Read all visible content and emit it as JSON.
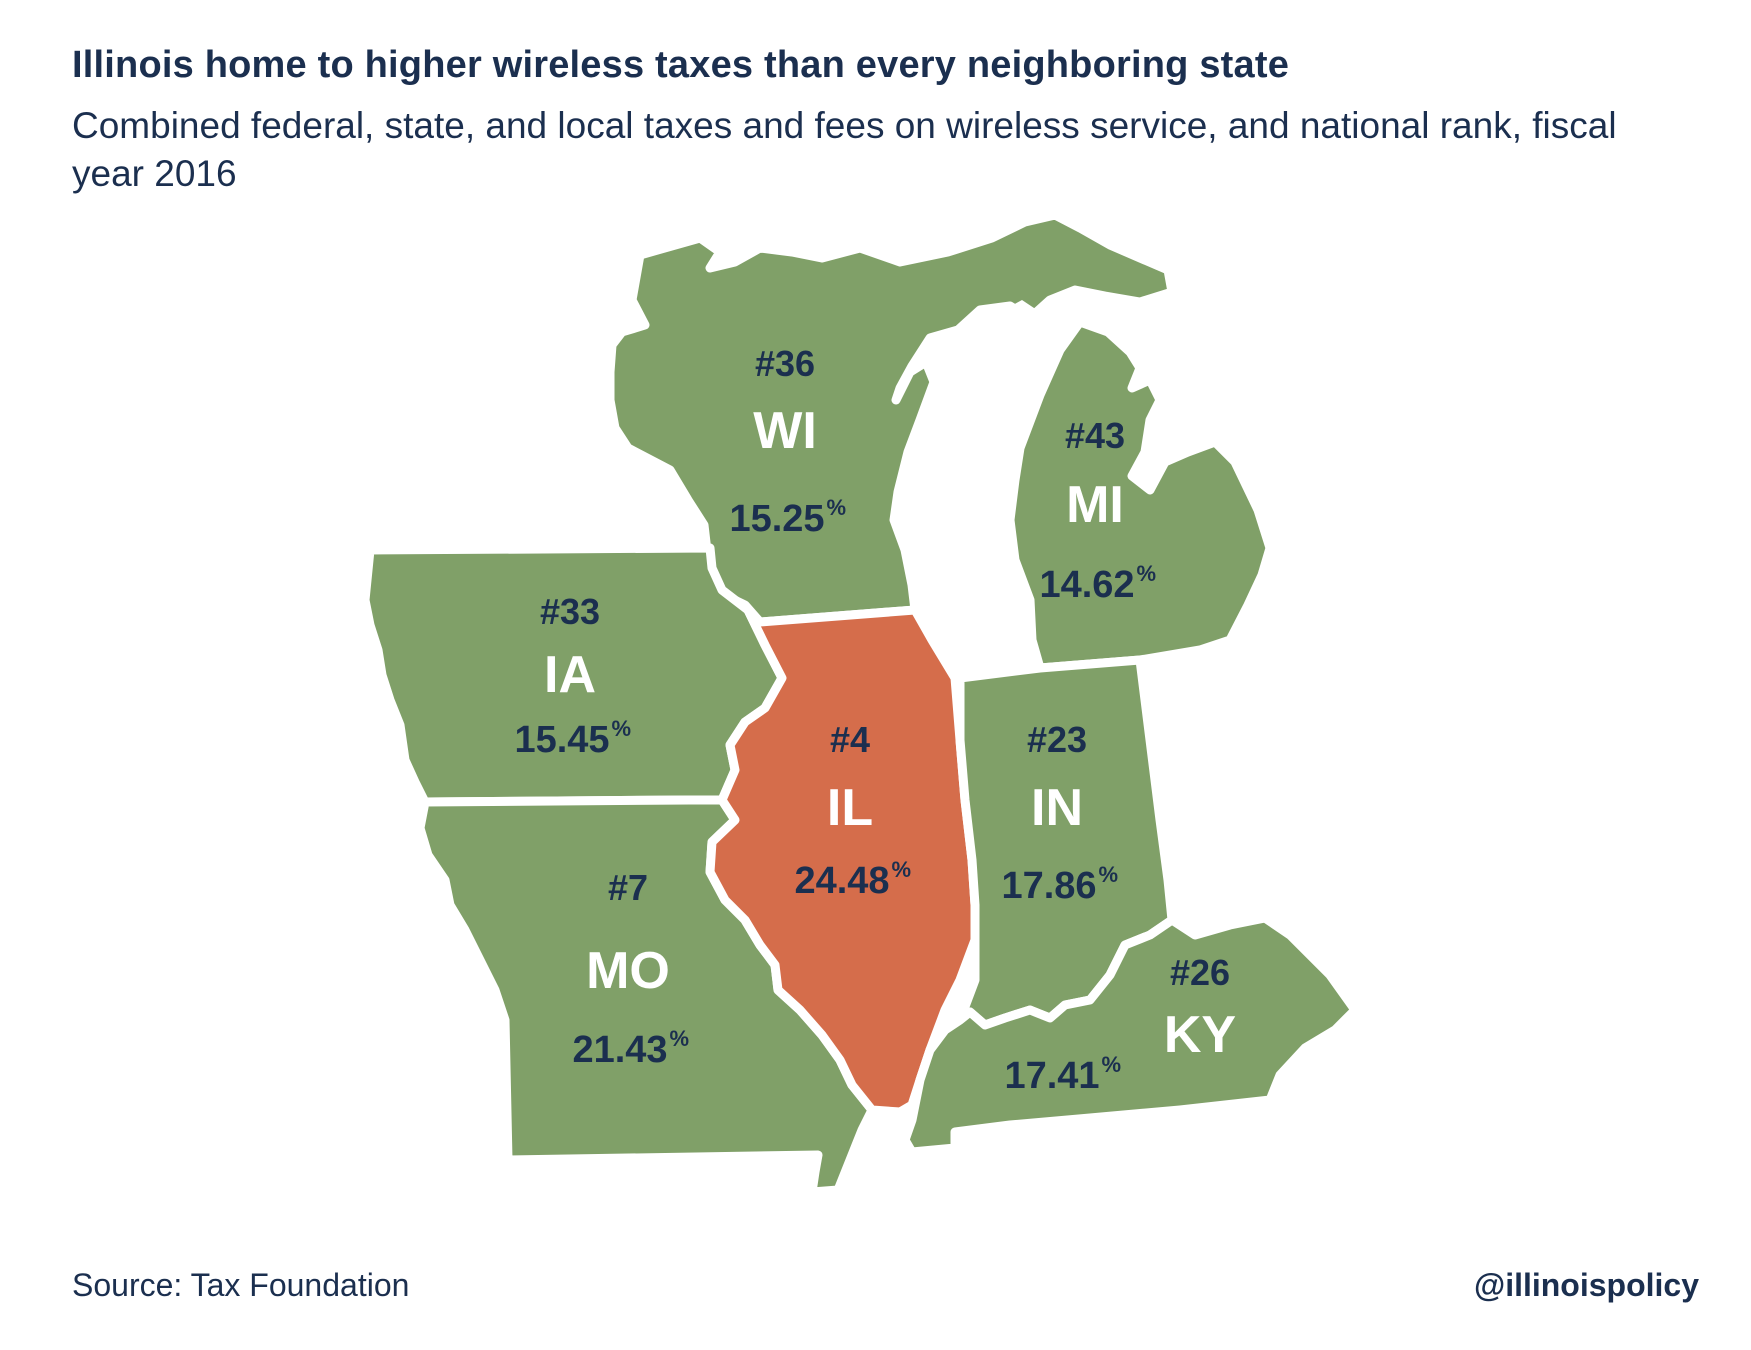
{
  "title": "Illinois home to higher wireless taxes than every neighboring state",
  "subtitle": "Combined federal, state, and local taxes and fees on wireless service, and national rank, fiscal year 2016",
  "source": "Source: Tax Foundation",
  "handle": "@illinoispolicy",
  "colors": {
    "highlight": "#d56d4b",
    "neighbor": "#80a068",
    "text_dark": "#1b2f4f",
    "text_light": "#ffffff"
  },
  "states": [
    {
      "id": "WI",
      "rank": "#36",
      "abbr": "WI",
      "rate": "15.25",
      "pct": "%",
      "highlight": false
    },
    {
      "id": "MI",
      "rank": "#43",
      "abbr": "MI",
      "rate": "14.62",
      "pct": "%",
      "highlight": false
    },
    {
      "id": "IA",
      "rank": "#33",
      "abbr": "IA",
      "rate": "15.45",
      "pct": "%",
      "highlight": false
    },
    {
      "id": "IL",
      "rank": "#4",
      "abbr": "IL",
      "rate": "24.48",
      "pct": "%",
      "highlight": true
    },
    {
      "id": "IN",
      "rank": "#23",
      "abbr": "IN",
      "rate": "17.86",
      "pct": "%",
      "highlight": false
    },
    {
      "id": "MO",
      "rank": "#7",
      "abbr": "MO",
      "rate": "21.43",
      "pct": "%",
      "highlight": false
    },
    {
      "id": "KY",
      "rank": "#26",
      "abbr": "KY",
      "rate": "17.41",
      "pct": "%",
      "highlight": false
    }
  ]
}
